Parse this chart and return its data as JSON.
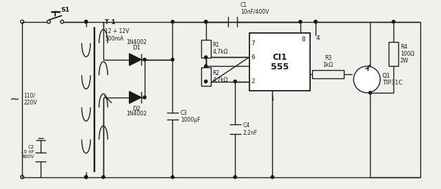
{
  "bg_color": "#f0f0ec",
  "line_color": "#1a1a1a",
  "components": {
    "S1": "S1",
    "T1_label": "T 1\n12 + 12V\n500mA",
    "D1": "D1\n1N4002",
    "D2": "D2\n1N4002",
    "C1": "C1\n10nF/400V",
    "C2": "C2\n10 nF\n400V",
    "C3": "C3\n1000μF",
    "C4": "C4\n2,2nF",
    "R1": "R1\n4,7kΩ",
    "R2": "R2\n4,7kΩ",
    "R3": "R3\n1kΩ",
    "R4": "R4\n100Ω\n2W",
    "CI1": "CI1\n555",
    "Q1": "Q1\nTIP31C",
    "voltage": "110/\n220V"
  }
}
